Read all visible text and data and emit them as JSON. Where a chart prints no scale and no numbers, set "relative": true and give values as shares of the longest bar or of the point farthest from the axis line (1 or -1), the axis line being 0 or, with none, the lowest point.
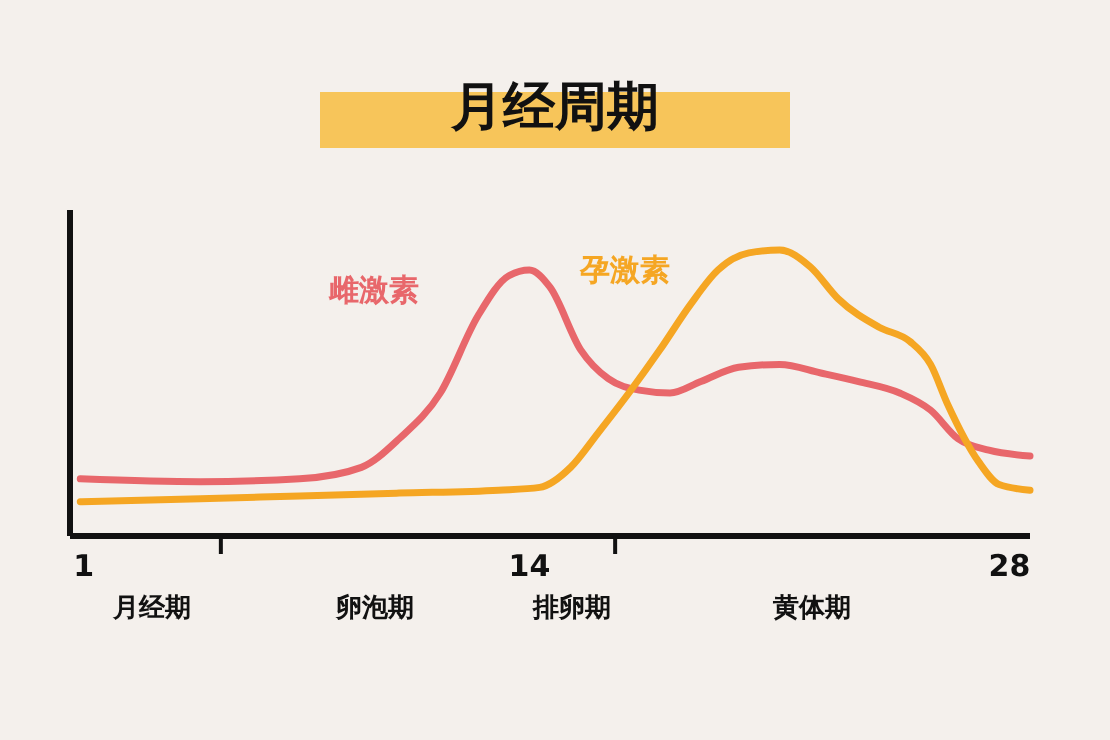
{
  "chart_data": {
    "type": "line",
    "title": "月经周期",
    "relative": true,
    "xlim": [
      0.6,
      28.6
    ],
    "xticks": [
      {
        "value": 1,
        "label": "1"
      },
      {
        "value": 5,
        "label": null
      },
      {
        "value": 14,
        "label": "14"
      },
      {
        "value": 16.5,
        "label": null
      },
      {
        "value": 28,
        "label": "28"
      }
    ],
    "annotations": [
      "月经期",
      "卵泡期",
      "排卵期",
      "黄体期"
    ],
    "grid": false,
    "legend": false,
    "marker": "none",
    "line_style": "solid",
    "series": [
      {
        "name": "雌激素",
        "color": "#e8676b",
        "x": [
          0.9,
          4.4,
          7.3,
          9.1,
          10.2,
          11.4,
          12.5,
          13.4,
          14.0,
          14.6,
          15.5,
          16.3,
          17.2,
          18.1,
          19.0,
          20.1,
          21.3,
          22.5,
          23.6,
          24.8,
          25.7,
          26.5,
          27.4,
          28.6
        ],
        "values": [
          0.2,
          0.19,
          0.2,
          0.24,
          0.34,
          0.5,
          0.77,
          0.91,
          0.93,
          0.87,
          0.65,
          0.55,
          0.51,
          0.5,
          0.54,
          0.59,
          0.6,
          0.57,
          0.54,
          0.5,
          0.44,
          0.34,
          0.3,
          0.28
        ]
      },
      {
        "name": "孕激素",
        "color": "#f5a623",
        "x": [
          0.9,
          4.4,
          7.3,
          10.2,
          13.1,
          14.3,
          15.2,
          16.0,
          16.9,
          17.8,
          18.7,
          19.5,
          20.4,
          21.3,
          22.2,
          23.0,
          24.2,
          25.1,
          25.7,
          26.2,
          27.1,
          27.7,
          28.6
        ],
        "values": [
          0.12,
          0.13,
          0.14,
          0.15,
          0.16,
          0.17,
          0.24,
          0.36,
          0.5,
          0.65,
          0.81,
          0.93,
          0.99,
          1,
          0.94,
          0.83,
          0.73,
          0.68,
          0.6,
          0.46,
          0.26,
          0.18,
          0.16
        ]
      }
    ]
  }
}
